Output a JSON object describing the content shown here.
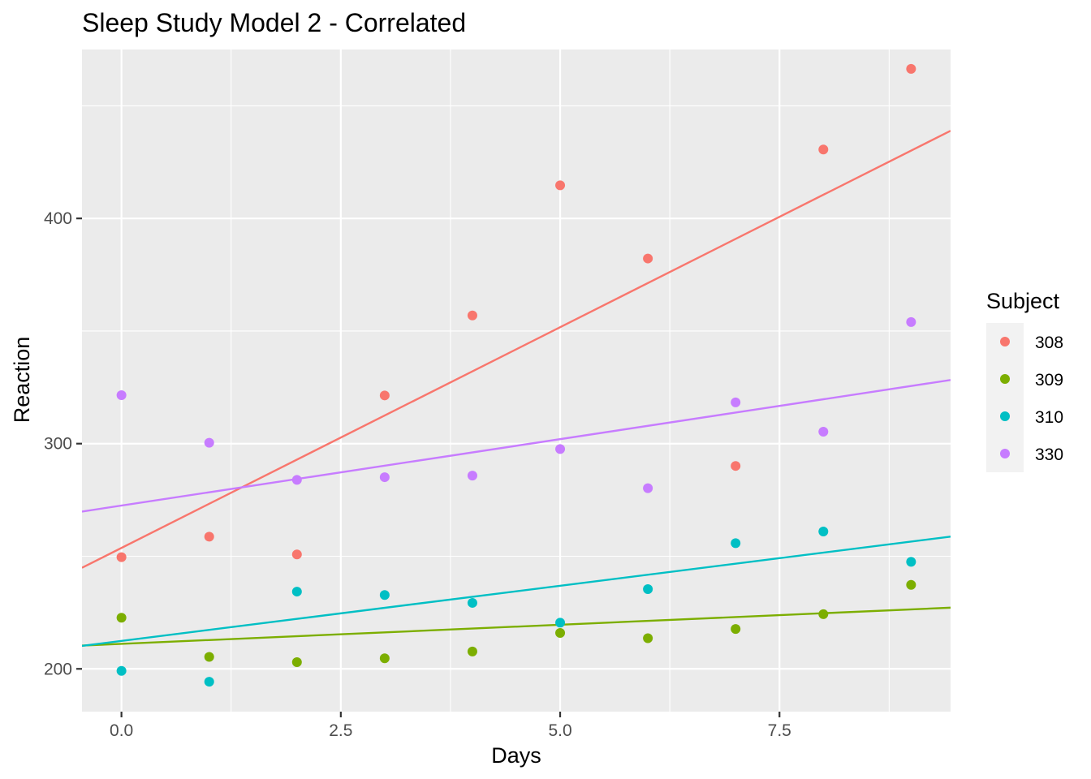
{
  "chart_data": {
    "type": "scatter",
    "title": "Sleep Study Model 2 - Correlated",
    "xlabel": "Days",
    "ylabel": "Reaction",
    "xlim": [
      -0.45,
      9.45
    ],
    "ylim": [
      181,
      475
    ],
    "x_ticks": [
      0.0,
      2.5,
      5.0,
      7.5
    ],
    "x_tick_labels": [
      "0.0",
      "2.5",
      "5.0",
      "7.5"
    ],
    "y_ticks": [
      200,
      300,
      400
    ],
    "y_tick_labels": [
      "200",
      "300",
      "400"
    ],
    "grid": true,
    "legend": {
      "title": "Subject",
      "position": "right"
    },
    "series": [
      {
        "name": "308",
        "color": "#F8766D",
        "x": [
          0,
          1,
          2,
          3,
          4,
          5,
          6,
          7,
          8,
          9
        ],
        "y": [
          249.6,
          258.7,
          250.8,
          321.4,
          356.9,
          414.7,
          382.2,
          290.1,
          430.6,
          466.4
        ],
        "fit": {
          "intercept": 253.7,
          "slope": 19.6
        }
      },
      {
        "name": "309",
        "color": "#7CAE00",
        "x": [
          0,
          1,
          2,
          3,
          4,
          5,
          6,
          7,
          8,
          9
        ],
        "y": [
          222.7,
          205.3,
          202.98,
          204.7,
          207.7,
          215.96,
          213.6,
          217.7,
          224.3,
          237.3
        ],
        "fit": {
          "intercept": 211.1,
          "slope": 1.7
        }
      },
      {
        "name": "310",
        "color": "#00BFC4",
        "x": [
          0,
          1,
          2,
          3,
          4,
          5,
          6,
          7,
          8,
          9
        ],
        "y": [
          199.1,
          194.3,
          234.3,
          232.8,
          229.3,
          220.5,
          235.4,
          255.8,
          261.0,
          247.5
        ],
        "fit": {
          "intercept": 212.4,
          "slope": 4.9
        }
      },
      {
        "name": "330",
        "color": "#C77CFF",
        "x": [
          0,
          1,
          2,
          3,
          4,
          5,
          6,
          7,
          8,
          9
        ],
        "y": [
          321.5,
          300.4,
          283.9,
          285.1,
          285.8,
          297.6,
          280.2,
          318.3,
          305.3,
          354.0
        ],
        "fit": {
          "intercept": 272.5,
          "slope": 5.9
        }
      }
    ]
  }
}
